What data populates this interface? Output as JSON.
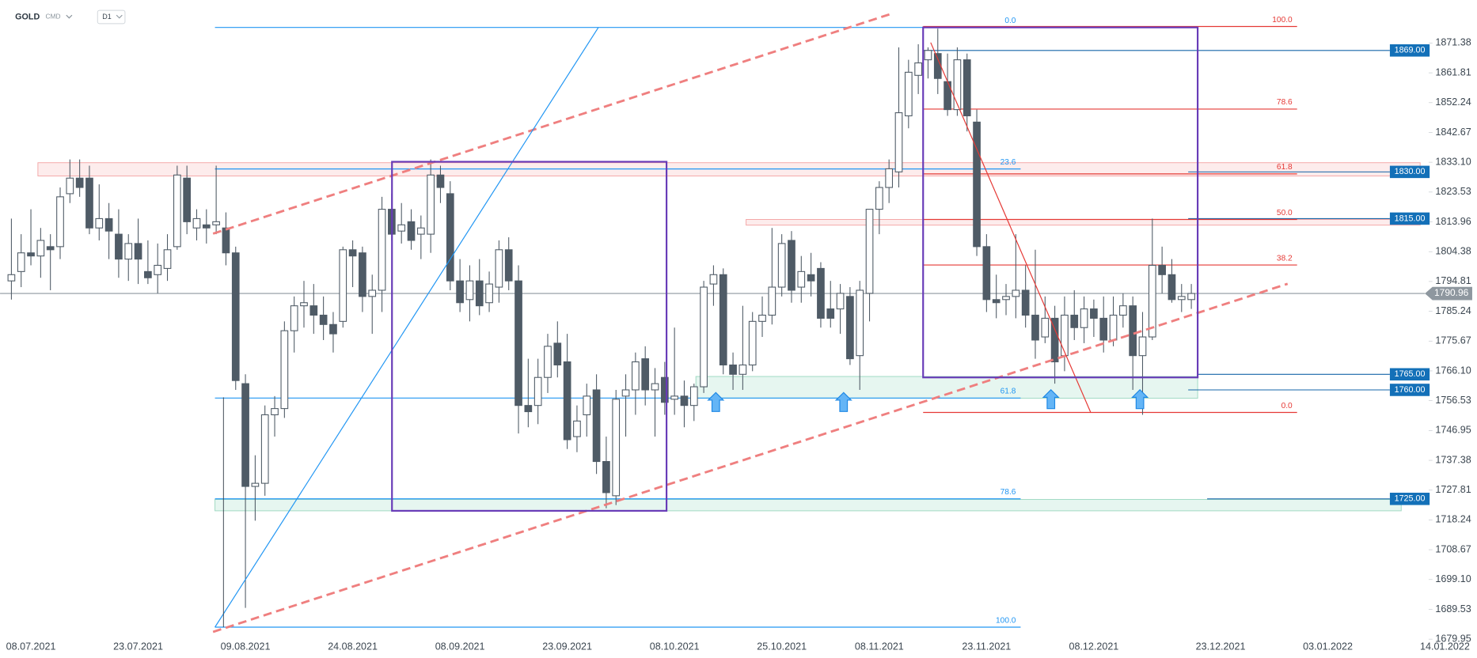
{
  "header": {
    "symbol": "GOLD",
    "market": "CMD",
    "interval": "D1"
  },
  "chart_data": {
    "type": "candlestick",
    "categories": [
      null,
      null,
      "08.07.2021",
      null,
      null,
      null,
      null,
      null,
      null,
      null,
      null,
      null,
      null,
      "23.07.2021",
      null,
      null,
      null,
      null,
      null,
      null,
      null,
      null,
      null,
      null,
      "09.08.2021",
      null,
      null,
      null,
      null,
      null,
      null,
      null,
      null,
      null,
      null,
      "24.08.2021",
      null,
      null,
      null,
      null,
      null,
      null,
      null,
      null,
      null,
      null,
      "08.09.2021",
      null,
      null,
      null,
      null,
      null,
      null,
      null,
      null,
      null,
      null,
      "23.09.2021",
      null,
      null,
      null,
      null,
      null,
      null,
      null,
      null,
      null,
      null,
      "08.10.2021",
      null,
      null,
      null,
      null,
      null,
      null,
      null,
      null,
      null,
      null,
      "25.10.2021",
      null,
      null,
      null,
      null,
      null,
      null,
      null,
      null,
      null,
      "08.11.2021",
      null,
      null,
      null,
      null,
      null,
      null,
      null,
      null,
      null,
      null,
      "23.11.2021",
      null,
      null,
      null,
      null,
      null,
      null,
      null,
      null,
      null,
      null,
      "08.12.2021",
      null,
      null,
      null,
      null,
      null,
      null,
      null,
      null,
      null,
      null,
      null,
      null,
      "23.12.2021",
      null,
      null,
      null,
      null,
      null,
      null,
      null,
      null,
      null,
      null,
      "03.01.2022",
      null,
      null,
      null,
      null,
      null,
      null,
      null,
      null,
      null,
      null,
      null,
      "14.01.2022"
    ],
    "open": [
      1795,
      1798,
      1804,
      1803,
      1806,
      1806,
      1823,
      1828,
      1828,
      1812,
      1815,
      1810,
      1802,
      1807,
      1798,
      1797,
      1799,
      1806,
      1828,
      1812,
      1813,
      1813,
      1812,
      1804,
      1762,
      1729,
      1730,
      1752,
      1754,
      1779,
      1787,
      1787,
      1784,
      1781,
      1782,
      1805,
      1804,
      1790,
      1792,
      1818,
      1811,
      1814,
      1810,
      1810,
      1829,
      1823,
      1795,
      1789,
      1795,
      1788,
      1793,
      1805,
      1795,
      1755,
      1755,
      1764,
      1775,
      1769,
      1745,
      1752,
      1760,
      1737,
      1726,
      1758,
      1760,
      1770,
      1760,
      1764,
      1757,
      1758,
      1755,
      1761,
      1794,
      1797,
      1768,
      1765,
      1768,
      1782,
      1784,
      1793,
      1808,
      1793,
      1797,
      1799,
      1786,
      1786,
      1790,
      1771,
      1791,
      1818,
      1825,
      1830,
      1848,
      1861,
      1866,
      1868,
      1859,
      1850,
      1866,
      1846,
      1806,
      1789,
      1789,
      1790,
      1792,
      1784,
      1777,
      1783,
      1771,
      1784,
      1780,
      1786,
      1783,
      1776,
      1784,
      1787,
      1771,
      1777,
      1800,
      1797,
      1789,
      1789,
      null,
      null,
      null,
      null,
      null,
      null,
      null,
      null,
      null,
      null,
      null,
      null,
      null,
      null,
      null,
      null,
      null,
      null,
      null,
      null,
      null,
      null,
      null,
      null,
      null,
      null
    ],
    "high": [
      1815,
      1810,
      1818,
      1812,
      1810,
      1825,
      1834,
      1834,
      1832,
      1826,
      1820,
      1818,
      1810,
      1815,
      1808,
      1807,
      1810,
      1832,
      1832,
      1818,
      1818,
      1832,
      1817,
      1806,
      1765,
      1739,
      1755,
      1758,
      1782,
      1790,
      1795,
      1794,
      1790,
      1785,
      1806,
      1808,
      1806,
      1797,
      1822,
      1823,
      1820,
      1818,
      1816,
      1834,
      1832,
      1827,
      1802,
      1800,
      1802,
      1798,
      1808,
      1809,
      1800,
      1770,
      1770,
      1778,
      1782,
      1778,
      1755,
      1762,
      1765,
      1745,
      1760,
      1765,
      1772,
      1774,
      1767,
      1769,
      1780,
      1763,
      1762,
      1795,
      1800,
      1799,
      1772,
      1787,
      1785,
      1790,
      1812,
      1810,
      1811,
      1803,
      1804,
      1801,
      1795,
      1794,
      1793,
      1795,
      1818,
      1827,
      1834,
      1870,
      1866,
      1871,
      1870,
      1876,
      1868,
      1870,
      1868,
      1850,
      1810,
      1797,
      1794,
      1810,
      1800,
      1805,
      1790,
      1787,
      1790,
      1792,
      1790,
      1789,
      1790,
      1790,
      1791,
      1790,
      1785,
      1815,
      1806,
      1802,
      1794,
      1794,
      null,
      null,
      null,
      null,
      null,
      null,
      null,
      null,
      null,
      null,
      null,
      null,
      null,
      null,
      null,
      null,
      null,
      null,
      null,
      null,
      null,
      null,
      null,
      null,
      null,
      null
    ],
    "low": [
      1789,
      1793,
      1800,
      1796,
      1792,
      1802,
      1820,
      1822,
      1810,
      1808,
      1802,
      1796,
      1795,
      1794,
      1794,
      1791,
      1795,
      1805,
      1810,
      1808,
      1807,
      1810,
      1800,
      1760,
      1690,
      1718,
      1726,
      1745,
      1751,
      1772,
      1780,
      1778,
      1776,
      1772,
      1780,
      1793,
      1785,
      1778,
      1785,
      1808,
      1807,
      1805,
      1802,
      1804,
      1820,
      1792,
      1785,
      1782,
      1784,
      1785,
      1788,
      1792,
      1746,
      1748,
      1749,
      1759,
      1764,
      1741,
      1740,
      1745,
      1733,
      1722,
      1723,
      1745,
      1752,
      1755,
      1745,
      1752,
      1752,
      1748,
      1750,
      1759,
      1787,
      1765,
      1760,
      1760,
      1766,
      1777,
      1781,
      1790,
      1788,
      1788,
      1790,
      1780,
      1780,
      1778,
      1768,
      1760,
      1782,
      1810,
      1820,
      1825,
      1844,
      1855,
      1860,
      1855,
      1848,
      1848,
      1843,
      1803,
      1785,
      1783,
      1784,
      1783,
      1780,
      1770,
      1775,
      1762,
      1766,
      1776,
      1775,
      1777,
      1772,
      1774,
      1780,
      1760,
      1752,
      1776,
      1791,
      1788,
      1785,
      1786,
      null,
      null,
      null,
      null,
      null,
      null,
      null,
      null,
      null,
      null,
      null,
      null,
      null,
      null,
      null,
      null,
      null,
      null,
      null,
      null,
      null,
      null,
      null,
      null,
      null,
      null
    ],
    "close": [
      1797,
      1804,
      1803,
      1808,
      1805,
      1822,
      1828,
      1825,
      1812,
      1815,
      1811,
      1802,
      1807,
      1802,
      1796,
      1800,
      1805,
      1829,
      1814,
      1815,
      1812,
      1814,
      1804,
      1763,
      1729,
      1730,
      1752,
      1754,
      1779,
      1787,
      1788,
      1784,
      1781,
      1778,
      1805,
      1803,
      1790,
      1792,
      1818,
      1810,
      1813,
      1808,
      1812,
      1829,
      1825,
      1795,
      1788,
      1795,
      1787,
      1794,
      1805,
      1795,
      1755,
      1753,
      1764,
      1774,
      1768,
      1744,
      1750,
      1758,
      1737,
      1727,
      1757,
      1760,
      1769,
      1760,
      1762,
      1756,
      1758,
      1755,
      1761,
      1793,
      1797,
      1768,
      1765,
      1768,
      1782,
      1784,
      1793,
      1807,
      1792,
      1798,
      1795,
      1783,
      1783,
      1791,
      1770,
      1792,
      1818,
      1825,
      1831,
      1849,
      1862,
      1865,
      1869,
      1860,
      1850,
      1866,
      1848,
      1806,
      1789,
      1788,
      1790,
      1792,
      1784,
      1776,
      1783,
      1769,
      1784,
      1780,
      1786,
      1783,
      1776,
      1784,
      1787,
      1771,
      1777,
      1800,
      1797,
      1789,
      1790,
      1790.96,
      null,
      null,
      null,
      null,
      null,
      null,
      null,
      null,
      null,
      null,
      null,
      null,
      null,
      null,
      null,
      null,
      null,
      null,
      null,
      null,
      null,
      null,
      null,
      null,
      null,
      null
    ],
    "up_color": "#ffffff",
    "down_color": "#4f5b66",
    "ylim": [
      1678.7,
      1885.2
    ],
    "yticks": [
      1871.38,
      1861.81,
      1852.24,
      1842.67,
      {
        "value": 1833.1,
        "label": "1833.10"
      },
      1823.53,
      1813.96,
      1804.38,
      1794.81,
      1785.24,
      1775.67,
      {
        "value": 1766.1,
        "label": "1766.10"
      },
      1756.53,
      1746.95,
      1737.38,
      1727.81,
      1718.24,
      1708.67,
      {
        "value": 1699.1,
        "label": "1699.10"
      },
      1689.53,
      1679.95
    ],
    "current_price": 1790.96,
    "levels": [
      {
        "value": 1869,
        "label": "1869.00"
      },
      {
        "value": 1830,
        "label": "1830.00"
      },
      {
        "value": 1815,
        "label": "1815.00"
      },
      {
        "value": 1765,
        "label": "1765.00"
      },
      {
        "value": 1760,
        "label": "1760.00"
      },
      {
        "value": 1725,
        "label": "1725.00"
      }
    ],
    "fib_blue": [
      {
        "value": 0,
        "label": "0.0"
      },
      {
        "value": 23.6,
        "label": "23.6"
      },
      {
        "value": 61.8,
        "label": "61.8"
      },
      {
        "value": 78.6,
        "label": "78.6"
      },
      {
        "value": 100,
        "label": "100.0"
      }
    ],
    "fib_red": [
      {
        "value": 100,
        "label": "100.0"
      },
      {
        "value": 78.6,
        "label": "78.6"
      },
      {
        "value": 61.8,
        "label": "61.8"
      },
      {
        "value": 50,
        "label": "50.0"
      },
      {
        "value": 38.2,
        "label": "38.2"
      },
      {
        "value": 0,
        "label": "0.0"
      }
    ]
  }
}
